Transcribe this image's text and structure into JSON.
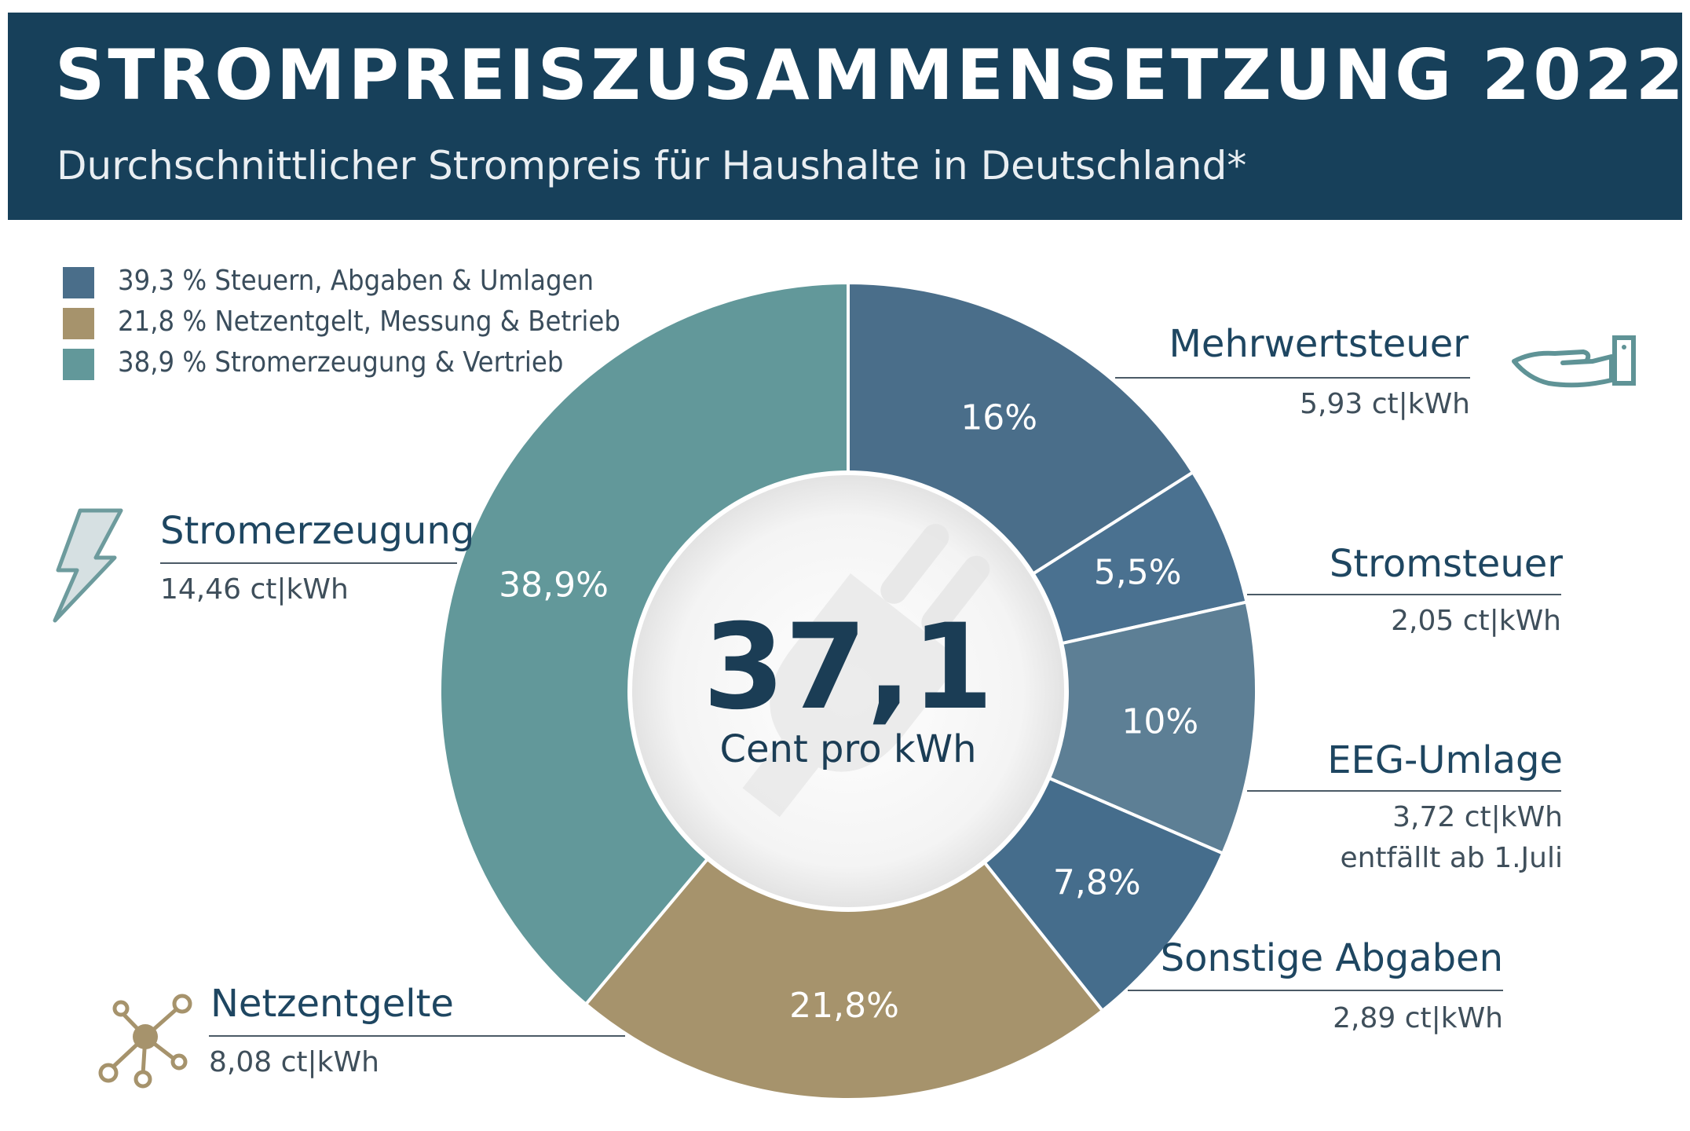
{
  "header": {
    "title": "STROMPREISZUSAMMENSETZUNG 2022",
    "subtitle": "Durchschnittlicher Strompreis für Haushalte in Deutschland*"
  },
  "legend": [
    {
      "text": "39,3 % Steuern, Abgaben & Umlagen",
      "color": "#4a6e8a"
    },
    {
      "text": "21,8 % Netzentgelt, Messung & Betrieb",
      "color": "#a6936c"
    },
    {
      "text": "38,9 % Stromerzeugung & Vertrieb",
      "color": "#62989a"
    }
  ],
  "center": {
    "value": "37,1",
    "unit": "Cent pro kWh"
  },
  "chart_data": {
    "type": "pie",
    "donut": true,
    "title": "STROMPREISZUSAMMENSETZUNG 2022",
    "subtitle": "Durchschnittlicher Strompreis für Haushalte in Deutschland*",
    "total": 37.1,
    "unit": "ct|kWh",
    "slices": [
      {
        "name": "Mehrwertsteuer",
        "percent": 16,
        "label": "16%",
        "value_text": "5,93 ct|kWh",
        "value": 5.93,
        "color": "#4a6e8a",
        "group": "Steuern, Abgaben & Umlagen"
      },
      {
        "name": "Stromsteuer",
        "percent": 5.5,
        "label": "5,5%",
        "value_text": "2,05 ct|kWh",
        "value": 2.05,
        "color": "#4a7190",
        "group": "Steuern, Abgaben & Umlagen"
      },
      {
        "name": "EEG-Umlage",
        "percent": 10,
        "label": "10%",
        "value_text": "3,72 ct|kWh",
        "value": 3.72,
        "note": "entfällt ab 1.Juli",
        "color": "#5d7f95",
        "group": "Steuern, Abgaben & Umlagen"
      },
      {
        "name": "Sonstige Abgaben",
        "percent": 7.8,
        "label": "7,8%",
        "value_text": "2,89 ct|kWh",
        "value": 2.89,
        "color": "#456d8c",
        "group": "Steuern, Abgaben & Umlagen"
      },
      {
        "name": "Netzentgelte",
        "percent": 21.8,
        "label": "21,8%",
        "value_text": "8,08 ct|kWh",
        "value": 8.08,
        "color": "#a6936c",
        "group": "Netzentgelt, Messung & Betrieb"
      },
      {
        "name": "Stromerzeugung",
        "percent": 38.9,
        "label": "38,9%",
        "value_text": "14,46 ct|kWh",
        "value": 14.46,
        "color": "#62989a",
        "group": "Stromerzeugung & Vertrieb"
      }
    ]
  },
  "icons": {
    "hand": "hand-icon",
    "lightning": "lightning-icon",
    "network": "network-icon",
    "plug": "plug-icon"
  }
}
